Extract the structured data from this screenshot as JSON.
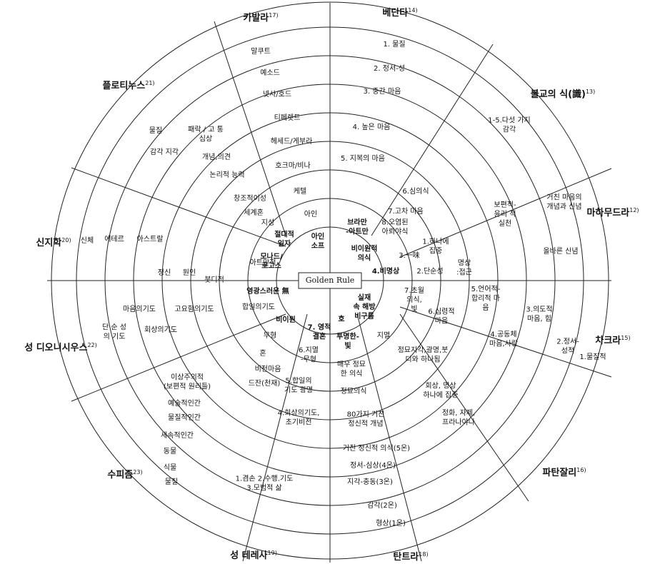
{
  "center_label": "Golden Rule",
  "sectors": [
    {
      "name": "카발라",
      "note": "17)"
    },
    {
      "name": "베단타",
      "note": "14)"
    },
    {
      "name": "플로티누스",
      "note": "21)"
    },
    {
      "name": "불교의 식(識)",
      "note": "13)"
    },
    {
      "name": "마하무드라",
      "note": "12)"
    },
    {
      "name": "신지학",
      "note": "20)"
    },
    {
      "name": "차크라",
      "note": "15)"
    },
    {
      "name": "성 디오니시우스",
      "note": "22)"
    },
    {
      "name": "수피즘",
      "note": "23)"
    },
    {
      "name": "파탄잘리",
      "note": "16)"
    },
    {
      "name": "성 테레사",
      "note": "19)"
    },
    {
      "name": "탄트라",
      "note": "18)"
    }
  ],
  "labels": [
    {
      "lines": [
        "말쿠트"
      ]
    },
    {
      "lines": [
        "예소드"
      ]
    },
    {
      "lines": [
        "넷사/호드"
      ]
    },
    {
      "lines": [
        "티페렛트"
      ]
    },
    {
      "lines": [
        "헤세드/게부라"
      ]
    },
    {
      "lines": [
        "호크마/비나"
      ]
    },
    {
      "lines": [
        "케텔"
      ]
    },
    {
      "lines": [
        "아인"
      ]
    },
    {
      "lines": [
        "아인",
        "소프"
      ],
      "bold": true
    },
    {
      "lines": [
        "1. 물질"
      ]
    },
    {
      "lines": [
        "2. 정서-성"
      ]
    },
    {
      "lines": [
        "3. 중간 마음"
      ]
    },
    {
      "lines": [
        "4. 높은 마음"
      ]
    },
    {
      "lines": [
        "5. 지복의 마음"
      ]
    },
    {
      "lines": [
        "6.심의식"
      ]
    },
    {
      "lines": [
        "7.고차 마음"
      ]
    },
    {
      "lines": [
        "8.오염된",
        "아뢰야식"
      ]
    },
    {
      "lines": [
        "브라만",
        "-아트만"
      ],
      "bold": true
    },
    {
      "lines": [
        "비이원적",
        "의식"
      ],
      "bold": true
    },
    {
      "lines": [
        "1.하나에",
        "집중"
      ]
    },
    {
      "lines": [
        "3.一味"
      ]
    },
    {
      "lines": [
        "2.단순성"
      ]
    },
    {
      "lines": [
        "4.비명상"
      ],
      "bold": true
    },
    {
      "lines": [
        "1-5.다섯  가지",
        "감각"
      ]
    },
    {
      "lines": [
        "보편적-",
        "윤리 적",
        "실천"
      ]
    },
    {
      "lines": [
        "거친  마음의",
        "개념과 신념"
      ]
    },
    {
      "lines": [
        "올바른 신념"
      ]
    },
    {
      "lines": [
        "명상",
        ":접근"
      ]
    },
    {
      "lines": [
        "5.언어적-",
        "합리적 마",
        "음"
      ]
    },
    {
      "lines": [
        "3.의도적",
        "마음, 힘"
      ]
    },
    {
      "lines": [
        "4.공동체",
        "마음,사랑"
      ]
    },
    {
      "lines": [
        "2.정서-",
        "성적"
      ]
    },
    {
      "lines": [
        "1.물질적"
      ]
    },
    {
      "lines": [
        "6.심령적",
        "마음"
      ]
    },
    {
      "lines": [
        "7.초월",
        "의식,",
        "빛"
      ]
    },
    {
      "lines": [
        "실재",
        "속 해방",
        "비구름"
      ],
      "bold": true
    },
    {
      "lines": [
        "호"
      ],
      "bold": true
    },
    {
      "lines": [
        "투명한-",
        "빛"
      ],
      "bold": true
    },
    {
      "lines": [
        "지멸"
      ]
    },
    {
      "lines": [
        "정묘지각,광명,붓",
        "디와 하나됨"
      ]
    },
    {
      "lines": [
        "매우 정묘",
        "한 의식"
      ]
    },
    {
      "lines": [
        "정묘의식"
      ]
    },
    {
      "lines": [
        "회상, 명상",
        "하나에 집중"
      ]
    },
    {
      "lines": [
        "80가지  거친",
        "정신적 개념"
      ]
    },
    {
      "lines": [
        "정화, 자제,",
        "프라나야나"
      ]
    },
    {
      "lines": [
        "거친 정신적 의식(5온)"
      ]
    },
    {
      "lines": [
        "정서-심상(4온)"
      ]
    },
    {
      "lines": [
        "지각-충동(3온)"
      ]
    },
    {
      "lines": [
        "감각(2온)"
      ]
    },
    {
      "lines": [
        "형상(1온)"
      ]
    },
    {
      "lines": [
        "7. 영적",
        "결혼"
      ],
      "bold": true
    },
    {
      "lines": [
        "6.지멸",
        "-무형"
      ]
    },
    {
      "lines": [
        "5.합일의",
        "기도 광명"
      ]
    },
    {
      "lines": [
        "4.회상의기도,",
        "초기비전"
      ]
    },
    {
      "lines": [
        "1.겸손 2.수행.기도",
        "3.모범적 삶"
      ]
    },
    {
      "lines": [
        "비이원"
      ],
      "bold": true
    },
    {
      "lines": [
        "영광스러운 無"
      ],
      "bold": true
    },
    {
      "lines": [
        "모나드/",
        "로고스"
      ],
      "bold": true
    },
    {
      "lines": [
        "절대적",
        "일자"
      ],
      "bold": true
    },
    {
      "lines": [
        "무형"
      ]
    },
    {
      "lines": [
        "혼"
      ]
    },
    {
      "lines": [
        "비전마음"
      ]
    },
    {
      "lines": [
        "드잔(천재)"
      ]
    },
    {
      "lines": [
        "합일의기도"
      ]
    },
    {
      "lines": [
        "아트만적"
      ]
    },
    {
      "lines": [
        "세계혼"
      ]
    },
    {
      "lines": [
        "지성"
      ]
    },
    {
      "lines": [
        "창조적이성"
      ]
    },
    {
      "lines": [
        "물질"
      ]
    },
    {
      "lines": [
        "감각 지각"
      ]
    },
    {
      "lines": [
        "패락 / 고 통",
        "심상"
      ]
    },
    {
      "lines": [
        "개념,의견"
      ]
    },
    {
      "lines": [
        "논리적 능력"
      ]
    },
    {
      "lines": [
        "신체"
      ]
    },
    {
      "lines": [
        "에테르"
      ]
    },
    {
      "lines": [
        "아스트랄"
      ]
    },
    {
      "lines": [
        "정신"
      ]
    },
    {
      "lines": [
        "원인"
      ]
    },
    {
      "lines": [
        "붓디적"
      ]
    },
    {
      "lines": [
        "단 순 성",
        "의 기도"
      ]
    },
    {
      "lines": [
        "마음의기도"
      ]
    },
    {
      "lines": [
        "고요함의기도"
      ]
    },
    {
      "lines": [
        "회상의기도"
      ]
    },
    {
      "lines": [
        "이상주의적",
        "(보편적 원리들)"
      ]
    },
    {
      "lines": [
        "예술적인간"
      ]
    },
    {
      "lines": [
        "물질적인간"
      ]
    },
    {
      "lines": [
        "세속적인간"
      ]
    },
    {
      "lines": [
        "동물"
      ]
    },
    {
      "lines": [
        "식물"
      ]
    },
    {
      "lines": [
        "물질"
      ]
    }
  ]
}
